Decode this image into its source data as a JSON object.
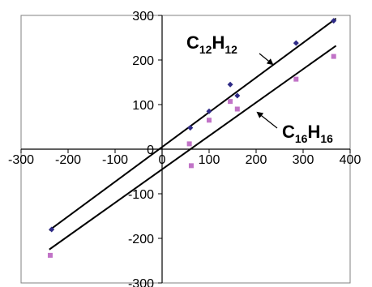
{
  "chart_data": {
    "type": "scatter",
    "title": "",
    "xlabel": "",
    "ylabel": "",
    "xlim": [
      -300,
      400
    ],
    "ylim": [
      -300,
      300
    ],
    "x_ticks": [
      -300,
      -200,
      -100,
      0,
      100,
      200,
      300,
      400
    ],
    "y_ticks": [
      -300,
      -200,
      -100,
      0,
      100,
      200,
      300
    ],
    "x_tick_labels": [
      "-300",
      "-200",
      "-100",
      "0",
      "100",
      "200",
      "300",
      "400"
    ],
    "y_tick_labels": [
      "-300",
      "-200",
      "-100",
      "0",
      "100",
      "200",
      "300"
    ],
    "grid": false,
    "legend": "none",
    "series": [
      {
        "name": "C12H12",
        "label_main": "C",
        "label_sub": "12",
        "label_main2": "H",
        "label_sub2": "12",
        "marker": "diamond",
        "color": "#2e2a86",
        "points": [
          {
            "x": -235,
            "y": -180
          },
          {
            "x": 60,
            "y": 48
          },
          {
            "x": 100,
            "y": 85
          },
          {
            "x": 145,
            "y": 145
          },
          {
            "x": 160,
            "y": 120
          },
          {
            "x": 285,
            "y": 238
          },
          {
            "x": 365,
            "y": 288
          }
        ],
        "fit": {
          "x": [
            -240,
            370
          ],
          "y": [
            -182,
            293
          ]
        }
      },
      {
        "name": "C16H16",
        "label_main": "C",
        "label_sub": "16",
        "label_main2": "H",
        "label_sub2": "16",
        "marker": "square",
        "color": "#c173c7",
        "points": [
          {
            "x": -238,
            "y": -238
          },
          {
            "x": 58,
            "y": 12
          },
          {
            "x": 62,
            "y": -37
          },
          {
            "x": 100,
            "y": 65
          },
          {
            "x": 145,
            "y": 107
          },
          {
            "x": 160,
            "y": 90
          },
          {
            "x": 285,
            "y": 157
          },
          {
            "x": 365,
            "y": 208
          }
        ],
        "fit": {
          "x": [
            -240,
            370
          ],
          "y": [
            -225,
            232
          ]
        }
      }
    ],
    "axis_color": "#000000",
    "line_color": "#000000"
  }
}
